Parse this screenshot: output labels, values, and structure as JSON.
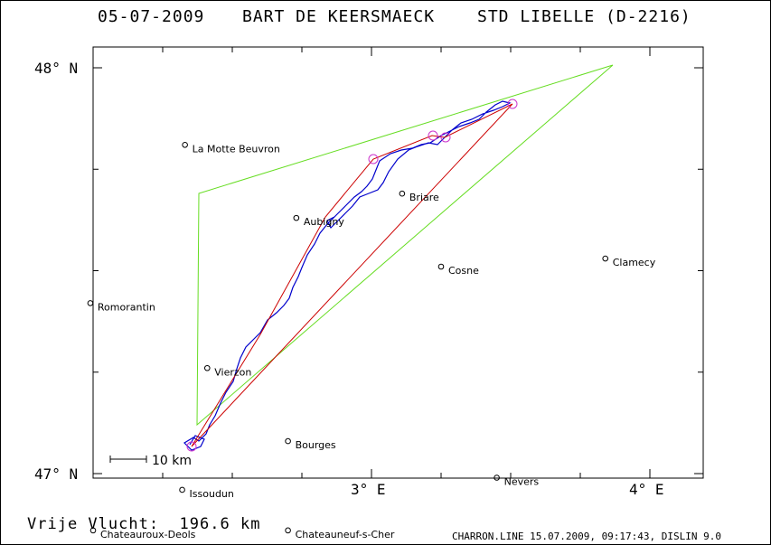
{
  "header": {
    "date": "05-07-2009",
    "pilot": "BART DE KEERSMAECK",
    "glider": "STD LIBELLE (D-2216)"
  },
  "axes": {
    "lat_top_label": "48° N",
    "lat_bottom_label": "47° N",
    "lon_labels": [
      "3° E",
      "4° E"
    ],
    "lat_range": [
      47.0,
      48.0
    ],
    "lon_range": [
      2.0,
      4.2
    ]
  },
  "scale_bar": {
    "label": "10 km"
  },
  "stats": {
    "label": "Vrije Vlucht:",
    "value": "196.6 km"
  },
  "footer": {
    "text": "CHARRON.LINE 15.07.2009, 09:17:43, DISLIN 9.0"
  },
  "colors": {
    "track": "#0000cc",
    "route": "#cc0000",
    "task": "#66dd22",
    "turnpoint": "#cc33cc"
  },
  "towns": [
    {
      "name": "La Motte Beuvron",
      "lat": 47.81,
      "lon": 2.33
    },
    {
      "name": "Briare",
      "lat": 47.69,
      "lon": 3.11
    },
    {
      "name": "Aubigny",
      "lat": 47.63,
      "lon": 2.73
    },
    {
      "name": "Clamecy",
      "lat": 47.53,
      "lon": 3.84
    },
    {
      "name": "Cosne",
      "lat": 47.51,
      "lon": 3.25
    },
    {
      "name": "Romorantin",
      "lat": 47.42,
      "lon": 1.99
    },
    {
      "name": "Vierzon",
      "lat": 47.26,
      "lon": 2.41
    },
    {
      "name": "Bourges",
      "lat": 47.08,
      "lon": 2.7
    },
    {
      "name": "Nevers",
      "lat": 46.99,
      "lon": 3.45
    },
    {
      "name": "Issoudun",
      "lat": 46.96,
      "lon": 2.32
    },
    {
      "name": "Chateauroux-Deols",
      "lat": 46.86,
      "lon": 2.0
    },
    {
      "name": "Chateauneuf-s-Cher",
      "lat": 46.86,
      "lon": 2.7
    }
  ]
}
